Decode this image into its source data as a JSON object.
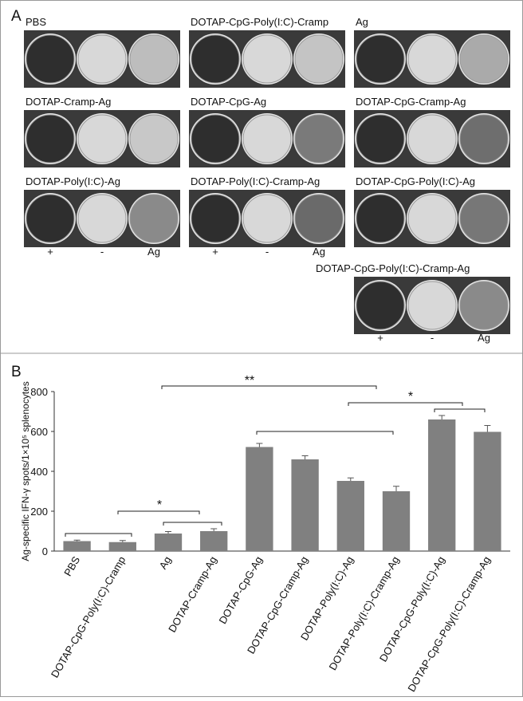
{
  "panel_a": {
    "label": "A",
    "groups": [
      "PBS",
      "DOTAP-CpG-Poly(I:C)-Cramp",
      "Ag",
      "DOTAP-Cramp-Ag",
      "DOTAP-CpG-Ag",
      "DOTAP-CpG-Cramp-Ag",
      "DOTAP-Poly(I:C)-Ag",
      "DOTAP-Poly(I:C)-Cramp-Ag",
      "DOTAP-CpG-Poly(I:C)-Ag",
      "DOTAP-CpG-Poly(I:C)-Cramp-Ag"
    ],
    "column_labels": [
      "+",
      "-",
      "Ag"
    ]
  },
  "panel_b_label": "B",
  "chart_data": {
    "type": "bar",
    "y_label": "Ag-specific IFN-γ spots/1×10⁵ splenocytes",
    "categories": [
      "PBS",
      "DOTAP-CpG-Poly(I:C)-Cramp",
      "Ag",
      "DOTAP-Cramp-Ag",
      "DOTAP-CpG-Ag",
      "DOTAP-CpG-Cramp-Ag",
      "DOTAP-Poly(I:C)-Ag",
      "DOTAP-Poly(I:C)-Cramp-Ag",
      "DOTAP-CpG-Poly(I:C)-Ag",
      "DOTAP-CpG-Poly(I:C)-Cramp-Ag"
    ],
    "values": [
      50,
      45,
      88,
      100,
      522,
      460,
      352,
      300,
      660,
      598
    ],
    "errors": [
      5,
      8,
      10,
      12,
      18,
      18,
      15,
      25,
      20,
      32
    ],
    "color": "#808080",
    "ylim": [
      0,
      800
    ],
    "yticks": [
      0,
      200,
      400,
      600,
      800
    ],
    "annotations": [
      "*",
      "**",
      "*"
    ]
  }
}
